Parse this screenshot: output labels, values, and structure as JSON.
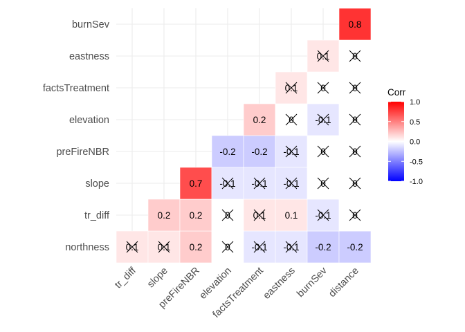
{
  "chart_data": {
    "type": "heatmap",
    "title": "",
    "xlabel": "",
    "ylabel": "",
    "x_categories": [
      "tr_diff",
      "slope",
      "preFireNBR",
      "elevation",
      "factsTreatment",
      "eastness",
      "burnSev",
      "distance"
    ],
    "y_categories": [
      "northness",
      "tr_diff",
      "slope",
      "preFireNBR",
      "elevation",
      "factsTreatment",
      "eastness",
      "burnSev"
    ],
    "cells": [
      {
        "x": "tr_diff",
        "y": "northness",
        "value": 0.1,
        "label": "0.1",
        "insignificant": true
      },
      {
        "x": "slope",
        "y": "northness",
        "value": 0.1,
        "label": "0.1",
        "insignificant": true
      },
      {
        "x": "preFireNBR",
        "y": "northness",
        "value": 0.2,
        "label": "0.2",
        "insignificant": false
      },
      {
        "x": "elevation",
        "y": "northness",
        "value": 0,
        "label": "0",
        "insignificant": true
      },
      {
        "x": "factsTreatment",
        "y": "northness",
        "value": -0.1,
        "label": "-0.1",
        "insignificant": true
      },
      {
        "x": "eastness",
        "y": "northness",
        "value": -0.1,
        "label": "-0.1",
        "insignificant": true
      },
      {
        "x": "burnSev",
        "y": "northness",
        "value": -0.2,
        "label": "-0.2",
        "insignificant": false
      },
      {
        "x": "distance",
        "y": "northness",
        "value": -0.2,
        "label": "-0.2",
        "insignificant": false
      },
      {
        "x": "slope",
        "y": "tr_diff",
        "value": 0.2,
        "label": "0.2",
        "insignificant": false
      },
      {
        "x": "preFireNBR",
        "y": "tr_diff",
        "value": 0.2,
        "label": "0.2",
        "insignificant": false
      },
      {
        "x": "elevation",
        "y": "tr_diff",
        "value": 0,
        "label": "0",
        "insignificant": true
      },
      {
        "x": "factsTreatment",
        "y": "tr_diff",
        "value": 0.1,
        "label": "0.1",
        "insignificant": true
      },
      {
        "x": "eastness",
        "y": "tr_diff",
        "value": 0.1,
        "label": "0.1",
        "insignificant": false
      },
      {
        "x": "burnSev",
        "y": "tr_diff",
        "value": -0.1,
        "label": "-0.1",
        "insignificant": true
      },
      {
        "x": "distance",
        "y": "tr_diff",
        "value": 0,
        "label": "0",
        "insignificant": true
      },
      {
        "x": "preFireNBR",
        "y": "slope",
        "value": 0.7,
        "label": "0.7",
        "insignificant": false
      },
      {
        "x": "elevation",
        "y": "slope",
        "value": -0.1,
        "label": "-0.1",
        "insignificant": true
      },
      {
        "x": "factsTreatment",
        "y": "slope",
        "value": -0.1,
        "label": "-0.1",
        "insignificant": true
      },
      {
        "x": "eastness",
        "y": "slope",
        "value": -0.1,
        "label": "-0.1",
        "insignificant": true
      },
      {
        "x": "burnSev",
        "y": "slope",
        "value": 0,
        "label": "0",
        "insignificant": true
      },
      {
        "x": "distance",
        "y": "slope",
        "value": 0,
        "label": "0",
        "insignificant": true
      },
      {
        "x": "elevation",
        "y": "preFireNBR",
        "value": -0.2,
        "label": "-0.2",
        "insignificant": false
      },
      {
        "x": "factsTreatment",
        "y": "preFireNBR",
        "value": -0.2,
        "label": "-0.2",
        "insignificant": false
      },
      {
        "x": "eastness",
        "y": "preFireNBR",
        "value": -0.1,
        "label": "-0.1",
        "insignificant": true
      },
      {
        "x": "burnSev",
        "y": "preFireNBR",
        "value": 0,
        "label": "0",
        "insignificant": true
      },
      {
        "x": "distance",
        "y": "preFireNBR",
        "value": 0,
        "label": "0",
        "insignificant": true
      },
      {
        "x": "factsTreatment",
        "y": "elevation",
        "value": 0.2,
        "label": "0.2",
        "insignificant": false
      },
      {
        "x": "eastness",
        "y": "elevation",
        "value": 0,
        "label": "0",
        "insignificant": true
      },
      {
        "x": "burnSev",
        "y": "elevation",
        "value": -0.1,
        "label": "-0.1",
        "insignificant": true
      },
      {
        "x": "distance",
        "y": "elevation",
        "value": 0,
        "label": "0",
        "insignificant": true
      },
      {
        "x": "eastness",
        "y": "factsTreatment",
        "value": 0.1,
        "label": "0.1",
        "insignificant": true
      },
      {
        "x": "burnSev",
        "y": "factsTreatment",
        "value": 0,
        "label": "0",
        "insignificant": true
      },
      {
        "x": "distance",
        "y": "factsTreatment",
        "value": 0,
        "label": "0",
        "insignificant": true
      },
      {
        "x": "burnSev",
        "y": "eastness",
        "value": 0.1,
        "label": "0.1",
        "insignificant": true
      },
      {
        "x": "distance",
        "y": "eastness",
        "value": 0,
        "label": "0",
        "insignificant": true
      },
      {
        "x": "distance",
        "y": "burnSev",
        "value": 0.8,
        "label": "0.8",
        "insignificant": false
      }
    ],
    "color_scale": {
      "low": "#0000ff",
      "mid": "#ffffff",
      "high": "#ff0000",
      "limits": [
        -1,
        1
      ]
    },
    "legend": {
      "title": "Corr",
      "ticks": [
        1.0,
        0.5,
        0.0,
        -0.5,
        -1.0
      ],
      "tick_labels": [
        "1.0",
        "0.5",
        "0.0",
        "-0.5",
        "-1.0"
      ],
      "placement": "right"
    },
    "grid": true
  }
}
